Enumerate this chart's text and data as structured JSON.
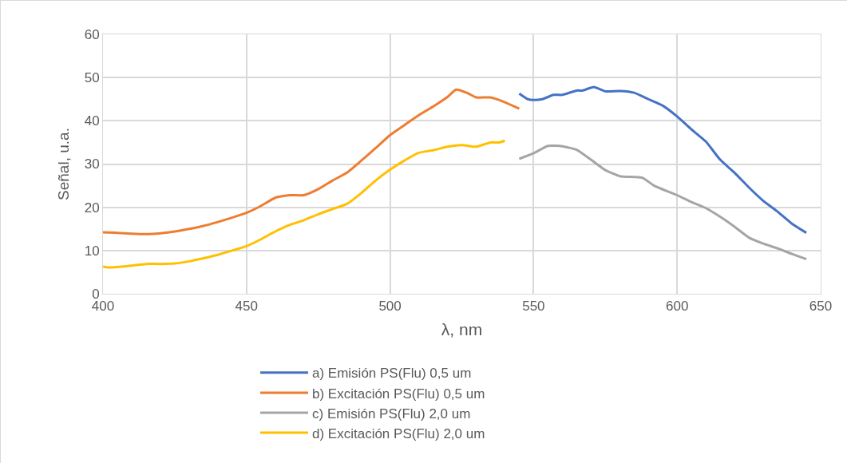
{
  "chart_data": {
    "type": "line",
    "xlabel": "λ, nm",
    "ylabel": "Señal, u.a.",
    "xlim": [
      400,
      650
    ],
    "xticks": [
      400,
      450,
      500,
      550,
      600,
      650
    ],
    "ylim": [
      0,
      60
    ],
    "yticks": [
      0,
      10,
      20,
      30,
      40,
      50,
      60
    ],
    "grid": true,
    "legend": "bottom",
    "marker": "none",
    "line_style": "solid",
    "series": [
      {
        "name": "a) Emisión PS(Flu) 0,5 um",
        "color": "#4472c4",
        "x": [
          545,
          548,
          550,
          553,
          557,
          560,
          565,
          567,
          571,
          575,
          580,
          585,
          590,
          595,
          600,
          605,
          610,
          615,
          620,
          625,
          630,
          635,
          640,
          645
        ],
        "values": [
          46.3,
          45.0,
          44.8,
          45.0,
          46.0,
          46.0,
          47.0,
          47.0,
          47.8,
          46.8,
          46.9,
          46.5,
          45.0,
          43.5,
          41.0,
          38.0,
          35.2,
          31.0,
          28.0,
          24.6,
          21.5,
          19.0,
          16.2,
          14.1
        ]
      },
      {
        "name": "b) Excitación PS(Flu) 0,5 um",
        "color": "#ed7d31",
        "x": [
          400,
          405,
          410,
          415,
          420,
          425,
          430,
          435,
          440,
          445,
          450,
          455,
          460,
          465,
          470,
          475,
          480,
          485,
          490,
          495,
          500,
          505,
          510,
          515,
          520,
          523,
          527,
          530,
          535,
          540,
          545
        ],
        "values": [
          14.2,
          14.1,
          13.9,
          13.8,
          14.0,
          14.4,
          15.0,
          15.7,
          16.6,
          17.6,
          18.7,
          20.3,
          22.2,
          22.8,
          22.8,
          24.2,
          26.2,
          28.0,
          30.8,
          33.7,
          36.7,
          39.0,
          41.3,
          43.3,
          45.5,
          47.2,
          46.4,
          45.4,
          45.4,
          44.3,
          42.8
        ]
      },
      {
        "name": "c) Emisión PS(Flu) 2,0 um",
        "color": "#a5a5a5",
        "x": [
          545,
          550,
          555,
          560,
          565,
          570,
          575,
          580,
          585,
          588,
          592,
          600,
          605,
          610,
          615,
          620,
          625,
          630,
          635,
          640,
          645
        ],
        "values": [
          31.2,
          32.5,
          34.2,
          34.1,
          33.3,
          31.0,
          28.6,
          27.2,
          27.0,
          26.8,
          25.0,
          22.8,
          21.2,
          19.8,
          17.8,
          15.5,
          13.0,
          11.6,
          10.5,
          9.2,
          8.0
        ]
      },
      {
        "name": "d) Excitación PS(Flu) 2,0 um",
        "color": "#ffc000",
        "x": [
          400,
          402,
          405,
          410,
          415,
          420,
          425,
          430,
          435,
          440,
          445,
          450,
          455,
          460,
          465,
          470,
          475,
          480,
          485,
          490,
          495,
          500,
          505,
          510,
          515,
          520,
          525,
          530,
          535,
          538,
          540
        ],
        "values": [
          6.3,
          6.1,
          6.2,
          6.5,
          6.9,
          6.9,
          7.0,
          7.5,
          8.2,
          9.0,
          10.0,
          11.0,
          12.6,
          14.4,
          15.9,
          17.0,
          18.4,
          19.6,
          20.8,
          23.3,
          26.2,
          28.7,
          30.8,
          32.6,
          33.2,
          34.0,
          34.4,
          34.0,
          35.0,
          35.0,
          35.4
        ]
      }
    ]
  }
}
